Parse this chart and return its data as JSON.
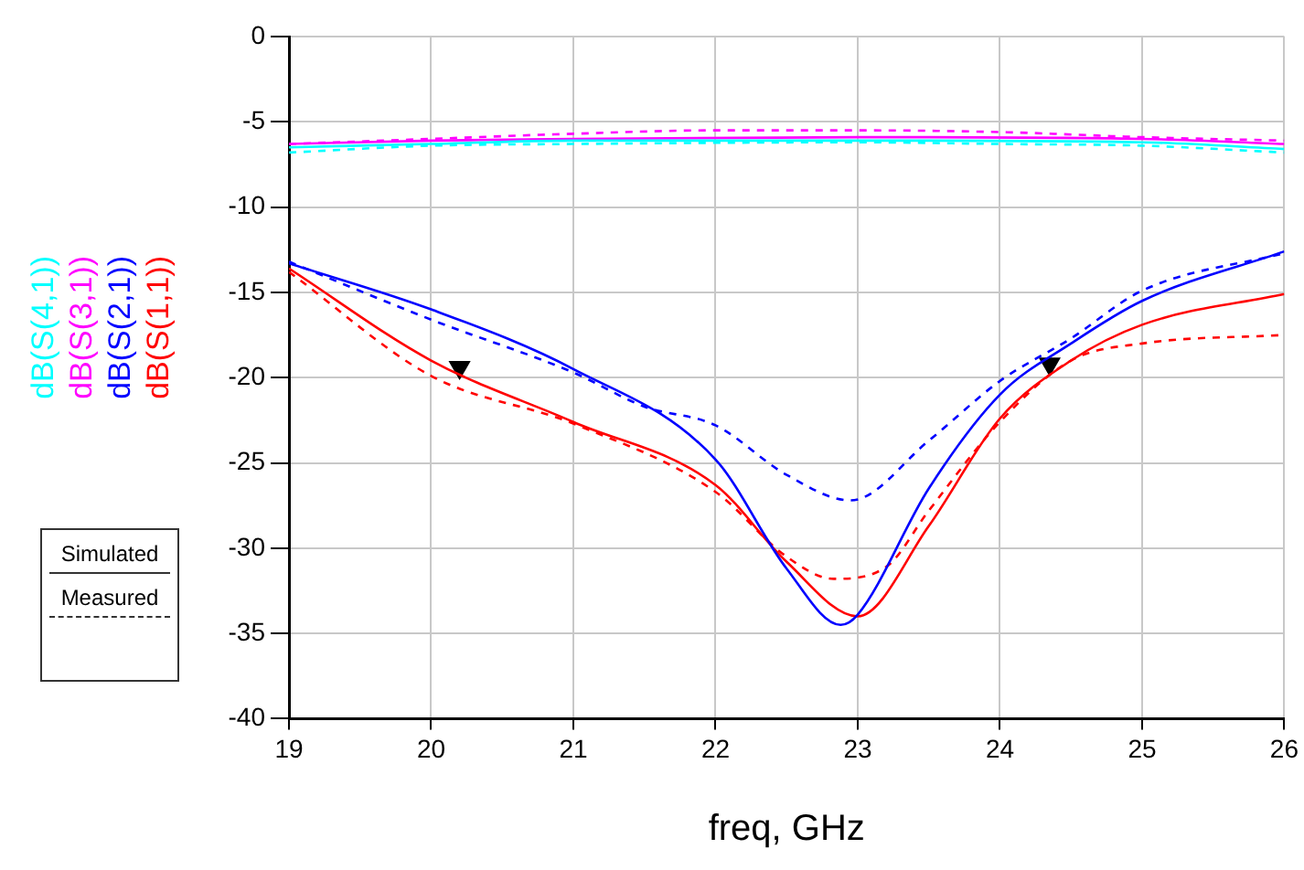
{
  "chart_data": {
    "type": "line",
    "xlabel": "freq, GHz",
    "legend": "left",
    "grid": true,
    "xlim": [
      19,
      26
    ],
    "xticks": [
      19,
      20,
      21,
      22,
      23,
      24,
      25,
      26
    ],
    "ylim": [
      -40,
      0
    ],
    "yticks": [
      -40,
      -35,
      -30,
      -25,
      -20,
      -15,
      -10,
      -5,
      0
    ],
    "annotations": [
      "Simulated",
      "Measured"
    ],
    "series": [
      {
        "name": "dB(S(4,1))",
        "color": "#00ffff",
        "line_style": "solid",
        "x": [
          19,
          20,
          21,
          23,
          25,
          26
        ],
        "values": [
          -6.5,
          -6.3,
          -6.1,
          -6.1,
          -6.2,
          -6.6
        ]
      },
      {
        "name": "dB(S(3,1))",
        "color": "#ff00ff",
        "line_style": "solid",
        "x": [
          19,
          20,
          21,
          23,
          25,
          26
        ],
        "values": [
          -6.3,
          -6.1,
          -6.0,
          -5.9,
          -6.0,
          -6.3
        ]
      },
      {
        "name": "dB(S(2,1))",
        "color": "#0000ff",
        "line_style": "solid",
        "x": [
          19,
          20,
          21,
          22,
          22.5,
          22.88,
          23,
          23.5,
          24,
          24.5,
          25,
          26
        ],
        "values": [
          -13.3,
          -16.0,
          -19.5,
          -24.8,
          -31.2,
          -34.5,
          -33.9,
          -26.5,
          -21.0,
          -18.0,
          -15.5,
          -12.6
        ]
      },
      {
        "name": "dB(S(1,1))",
        "color": "#ff0000",
        "line_style": "solid",
        "x": [
          19,
          20,
          21,
          22,
          22.5,
          23,
          23.5,
          24,
          24.5,
          25,
          26
        ],
        "values": [
          -13.6,
          -19.0,
          -22.6,
          -26.3,
          -30.8,
          -34.0,
          -28.7,
          -22.4,
          -19.0,
          -16.9,
          -15.1
        ]
      },
      {
        "color": "#00ffff",
        "line_style": "dashed",
        "x": [
          19,
          20,
          21,
          23,
          24,
          25,
          26
        ],
        "values": [
          -6.8,
          -6.4,
          -6.3,
          -6.2,
          -6.3,
          -6.4,
          -6.8
        ]
      },
      {
        "color": "#ff00ff",
        "line_style": "dashed",
        "x": [
          19,
          20,
          21,
          22,
          23,
          24,
          25,
          26
        ],
        "values": [
          -6.3,
          -6.0,
          -5.7,
          -5.5,
          -5.5,
          -5.6,
          -5.9,
          -6.1
        ]
      },
      {
        "color": "#0000ff",
        "line_style": "dashed",
        "x": [
          19,
          20,
          21,
          21.5,
          22,
          22.5,
          22.95,
          23.5,
          24,
          24.5,
          25,
          26
        ],
        "values": [
          -13.2,
          -16.6,
          -19.7,
          -21.7,
          -22.8,
          -25.7,
          -27.2,
          -23.7,
          -20.2,
          -17.7,
          -14.9,
          -12.7
        ]
      },
      {
        "color": "#ff0000",
        "line_style": "dashed",
        "x": [
          19,
          20,
          21,
          22,
          22.5,
          22.83,
          23.2,
          23.5,
          24,
          24.5,
          25,
          26
        ],
        "values": [
          -13.8,
          -19.9,
          -22.7,
          -26.7,
          -30.5,
          -31.8,
          -31.1,
          -27.8,
          -22.6,
          -19.0,
          -18.0,
          -17.5
        ]
      },
      {
        "type": "scatter",
        "marker": "triangle",
        "color": "#000000",
        "x": [
          20.2,
          24.35
        ],
        "values": [
          -19.4,
          -19.2
        ]
      }
    ]
  }
}
